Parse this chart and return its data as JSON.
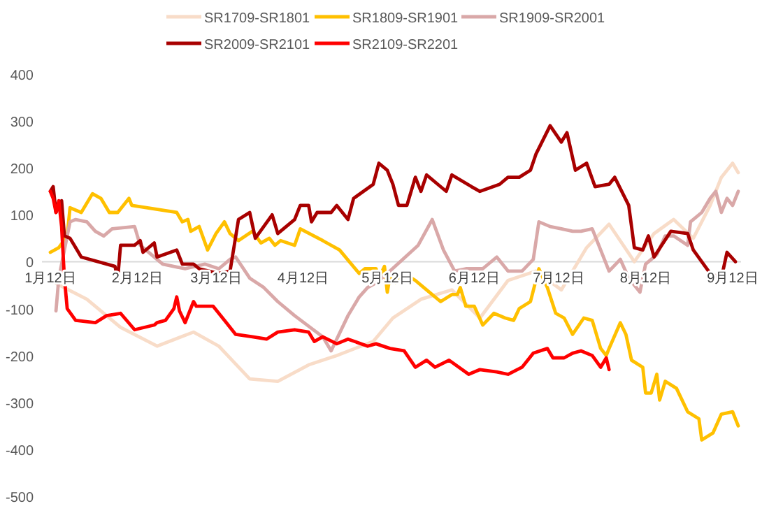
{
  "chart_data": {
    "type": "line",
    "legend": "top",
    "xlim": [
      "--01-09",
      "--09-15"
    ],
    "xticks": [
      {
        "value": "--01-12",
        "label": "1月12日"
      },
      {
        "value": "--02-12",
        "label": "2月12日"
      },
      {
        "value": "--03-12",
        "label": "3月12日"
      },
      {
        "value": "--04-12",
        "label": "4月12日"
      },
      {
        "value": "--05-12",
        "label": "5月12日"
      },
      {
        "value": "--06-12",
        "label": "6月12日"
      },
      {
        "value": "--07-12",
        "label": "7月12日"
      },
      {
        "value": "--08-12",
        "label": "8月12日"
      },
      {
        "value": "--09-12",
        "label": "9月12日"
      }
    ],
    "ylim": [
      -500,
      400
    ],
    "yticks": [
      -500,
      -400,
      -300,
      -200,
      -100,
      0,
      100,
      200,
      300,
      400
    ],
    "series": [
      {
        "name": "SR1709-SR1801",
        "color": "#f8dcc8",
        "x": [
          "--01-12",
          "--01-25",
          "--02-06",
          "--02-19",
          "--03-04",
          "--03-13",
          "--03-24",
          "--04-03",
          "--04-14",
          "--04-24",
          "--05-07",
          "--05-14",
          "--05-24",
          "--06-04",
          "--06-14",
          "--06-24",
          "--07-04",
          "--07-13",
          "--07-22",
          "--07-30",
          "--08-08",
          "--08-15",
          "--08-22",
          "--08-29",
          "--09-04",
          "--09-08",
          "--09-12",
          "--09-14"
        ],
        "values": [
          -40,
          -80,
          -140,
          -180,
          -150,
          -180,
          -250,
          -255,
          -220,
          -200,
          -170,
          -120,
          -80,
          -60,
          -120,
          -40,
          -20,
          -60,
          30,
          80,
          0,
          60,
          90,
          50,
          120,
          180,
          210,
          190
        ]
      },
      {
        "name": "SR1809-SR1901",
        "color": "#ffc000",
        "x": [
          "--01-12",
          "--01-15",
          "--01-18",
          "--01-19",
          "--01-23",
          "--01-27",
          "--01-30",
          "--02-02",
          "--02-05",
          "--02-09",
          "--02-10",
          "--02-26",
          "--02-28",
          "--03-02",
          "--03-03",
          "--03-06",
          "--03-09",
          "--03-12",
          "--03-15",
          "--03-17",
          "--03-20",
          "--03-25",
          "--03-28",
          "--03-31",
          "--04-02",
          "--04-04",
          "--04-09",
          "--04-11",
          "--04-19",
          "--04-25",
          "--05-02",
          "--05-04",
          "--05-08",
          "--05-09",
          "--05-11",
          "--05-12",
          "--05-13",
          "--05-15",
          "--05-18",
          "--05-22",
          "--05-25",
          "--05-31",
          "--06-04",
          "--06-06",
          "--06-07",
          "--06-09",
          "--06-12",
          "--06-15",
          "--06-19",
          "--06-23",
          "--06-26",
          "--06-28",
          "--07-02",
          "--07-05",
          "--07-08",
          "--07-11",
          "--07-14",
          "--07-17",
          "--07-21",
          "--07-24",
          "--07-27",
          "--07-29",
          "--07-30",
          "--08-03",
          "--08-05",
          "--08-07",
          "--08-11",
          "--08-12",
          "--08-14",
          "--08-16",
          "--08-17",
          "--08-19",
          "--08-23",
          "--08-27",
          "--08-31",
          "--09-01",
          "--09-05",
          "--09-08",
          "--09-12",
          "--09-14"
        ],
        "values": [
          20,
          30,
          55,
          115,
          105,
          145,
          135,
          105,
          105,
          135,
          120,
          105,
          85,
          90,
          65,
          75,
          25,
          60,
          85,
          60,
          45,
          65,
          40,
          50,
          35,
          45,
          35,
          70,
          45,
          25,
          -25,
          -15,
          -15,
          -35,
          -10,
          -65,
          -30,
          -45,
          -25,
          -40,
          -55,
          -85,
          -70,
          -70,
          -55,
          -95,
          -95,
          -135,
          -110,
          -120,
          -125,
          -100,
          -85,
          -15,
          -55,
          -110,
          -120,
          -155,
          -120,
          -125,
          -185,
          -200,
          -185,
          -130,
          -155,
          -210,
          -225,
          -280,
          -280,
          -240,
          -295,
          -255,
          -270,
          -320,
          -335,
          -380,
          -365,
          -325,
          -320,
          -350
        ]
      },
      {
        "name": "SR1909-SR2001",
        "color": "#d9a8a8",
        "x": [
          "--01-14",
          "--01-15",
          "--01-19",
          "--01-21",
          "--01-25",
          "--01-28",
          "--01-31",
          "--02-03",
          "--02-11",
          "--02-13",
          "--02-21",
          "--03-01",
          "--03-08",
          "--03-13",
          "--03-17",
          "--03-19",
          "--03-24",
          "--03-29",
          "--04-03",
          "--04-09",
          "--04-19",
          "--04-22",
          "--04-28",
          "--05-02",
          "--05-05",
          "--05-08",
          "--05-12",
          "--05-23",
          "--05-28",
          "--06-01",
          "--06-05",
          "--06-09",
          "--06-15",
          "--06-20",
          "--06-24",
          "--06-29",
          "--07-03",
          "--07-05",
          "--07-09",
          "--07-13",
          "--07-17",
          "--07-20",
          "--07-24",
          "--07-27",
          "--07-30",
          "--08-03",
          "--08-06",
          "--08-10",
          "--08-12",
          "--08-16",
          "--08-19",
          "--08-22",
          "--08-27",
          "--08-28",
          "--09-01",
          "--09-04",
          "--09-06",
          "--09-08",
          "--09-10",
          "--09-12",
          "--09-14"
        ],
        "values": [
          -105,
          -35,
          85,
          90,
          85,
          65,
          55,
          70,
          75,
          35,
          -5,
          -15,
          -5,
          -15,
          5,
          10,
          -35,
          -55,
          -85,
          -115,
          -160,
          -190,
          -115,
          -75,
          -55,
          -45,
          -25,
          35,
          90,
          25,
          -20,
          -15,
          -15,
          10,
          -20,
          -20,
          5,
          85,
          75,
          70,
          65,
          65,
          70,
          25,
          -20,
          5,
          -35,
          -65,
          -5,
          15,
          55,
          55,
          35,
          85,
          105,
          135,
          150,
          105,
          135,
          120,
          150
        ]
      },
      {
        "name": "SR2009-SR2101",
        "color": "#a80000",
        "x": [
          "--01-12",
          "--01-13",
          "--01-14",
          "--01-16",
          "--01-17",
          "--01-19",
          "--01-21",
          "--01-23",
          "--02-04",
          "--02-05",
          "--02-06",
          "--02-11",
          "--02-13",
          "--02-14",
          "--02-18",
          "--02-19",
          "--02-26",
          "--02-28",
          "--03-04",
          "--03-06",
          "--03-13",
          "--03-17",
          "--03-20",
          "--03-24",
          "--03-26",
          "--04-01",
          "--04-03",
          "--04-09",
          "--04-11",
          "--04-14",
          "--04-15",
          "--04-17",
          "--04-22",
          "--04-24",
          "--04-28",
          "--04-30",
          "--05-07",
          "--05-09",
          "--05-12",
          "--05-14",
          "--05-16",
          "--05-19",
          "--05-22",
          "--05-24",
          "--05-26",
          "--05-30",
          "--06-02",
          "--06-04",
          "--06-11",
          "--06-14",
          "--06-21",
          "--06-24",
          "--06-28",
          "--07-02",
          "--07-04",
          "--07-09",
          "--07-13",
          "--07-15",
          "--07-18",
          "--07-22",
          "--07-25",
          "--07-30",
          "--08-01",
          "--08-06",
          "--08-08",
          "--08-11",
          "--08-13",
          "--08-15",
          "--08-21",
          "--08-27",
          "--08-29",
          "--09-04",
          "--09-08",
          "--09-10",
          "--09-13"
        ],
        "values": [
          150,
          160,
          105,
          130,
          55,
          50,
          30,
          10,
          -10,
          -35,
          35,
          35,
          45,
          20,
          40,
          10,
          25,
          -5,
          -5,
          -15,
          -25,
          -20,
          90,
          105,
          50,
          100,
          60,
          90,
          120,
          120,
          85,
          105,
          105,
          120,
          90,
          135,
          165,
          210,
          195,
          165,
          120,
          120,
          180,
          150,
          185,
          165,
          150,
          185,
          160,
          150,
          165,
          180,
          180,
          195,
          230,
          290,
          255,
          275,
          195,
          210,
          160,
          165,
          180,
          120,
          30,
          25,
          55,
          10,
          65,
          60,
          25,
          -25,
          -35,
          20,
          0
        ]
      },
      {
        "name": "SR2109-SR2201",
        "color": "#ff0000",
        "x": [
          "--01-12",
          "--01-13",
          "--01-14",
          "--01-15",
          "--01-16",
          "--01-17",
          "--01-18",
          "--01-21",
          "--01-28",
          "--02-01",
          "--02-06",
          "--02-11",
          "--02-18",
          "--02-19",
          "--02-22",
          "--02-25",
          "--02-26",
          "--02-27",
          "--03-01",
          "--03-04",
          "--03-05",
          "--03-08",
          "--03-11",
          "--03-15",
          "--03-19",
          "--03-25",
          "--03-30",
          "--04-03",
          "--04-09",
          "--04-14",
          "--04-16",
          "--04-19",
          "--04-24",
          "--04-28",
          "--05-05",
          "--05-08",
          "--05-13",
          "--05-18",
          "--05-22",
          "--05-26",
          "--05-29",
          "--06-03",
          "--06-10",
          "--06-14",
          "--06-20",
          "--06-24",
          "--06-29",
          "--07-03",
          "--07-08",
          "--07-10",
          "--07-14",
          "--07-17",
          "--07-20",
          "--07-24",
          "--07-27",
          "--07-29",
          "--07-30"
        ],
        "values": [
          150,
          135,
          105,
          130,
          75,
          -35,
          -100,
          -125,
          -130,
          -115,
          -110,
          -145,
          -135,
          -130,
          -125,
          -100,
          -75,
          -105,
          -130,
          -85,
          -95,
          -95,
          -95,
          -125,
          -155,
          -160,
          -165,
          -150,
          -145,
          -150,
          -170,
          -160,
          -175,
          -165,
          -180,
          -175,
          -185,
          -190,
          -225,
          -210,
          -225,
          -210,
          -240,
          -230,
          -235,
          -240,
          -225,
          -195,
          -185,
          -205,
          -205,
          -195,
          -190,
          -200,
          -225,
          -205,
          -230
        ]
      }
    ]
  }
}
